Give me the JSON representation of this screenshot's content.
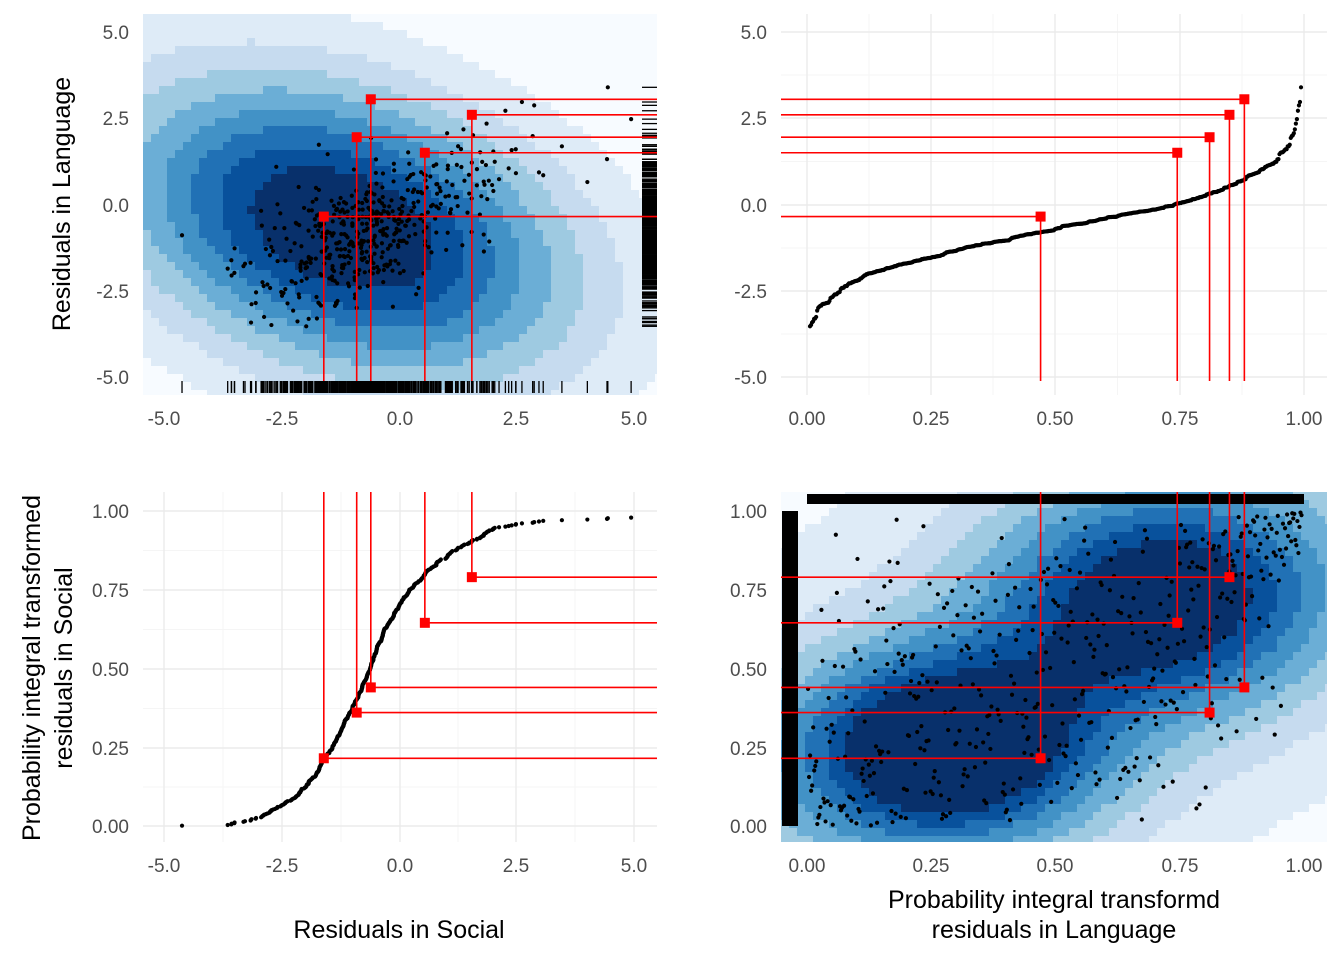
{
  "figure": {
    "colors": {
      "grid_major": "#ebebeb",
      "grid_minor": "#f5f5f5",
      "points": "#000000",
      "highlight": "#ff0000",
      "density_fill_low": "#f7fbff",
      "density_fill_high": "#08306b"
    },
    "axis_titles": {
      "y_top": "Residuals in Language",
      "y_bottom_line1": "Probability integral transformed",
      "y_bottom_line2": "residuals in Social",
      "x_left": "Residuals in Social",
      "x_right_line1": "Probability integral transformd",
      "x_right_line2": "residuals in Language"
    }
  },
  "chart_data": [
    {
      "id": "top-left",
      "type": "scatter",
      "overlay": "filled-2d-density",
      "rugs": [
        "bottom",
        "right"
      ],
      "xlabel": "",
      "ylabel": "Residuals in Language",
      "xlim": [
        -5.2,
        5.3
      ],
      "ylim": [
        -5.3,
        5.5
      ],
      "xticks": [
        "-5.0",
        "-2.5",
        "0.0",
        "2.5",
        "5.0"
      ],
      "yticks": [
        "-5.0",
        "-2.5",
        "0.0",
        "2.5",
        "5.0"
      ],
      "highlighted_points": [
        {
          "x": -1.6,
          "y": -0.35
        },
        {
          "x": -0.9,
          "y": 1.95
        },
        {
          "x": -0.6,
          "y": 3.05
        },
        {
          "x": 0.55,
          "y": 1.5
        },
        {
          "x": 1.55,
          "y": 2.6
        }
      ],
      "highlight_guides": "vertical to bottom, horizontal to right edge"
    },
    {
      "id": "top-right",
      "type": "scatter",
      "xlabel": "",
      "ylabel": "",
      "xlim": [
        -0.05,
        1.04
      ],
      "ylim": [
        -5.3,
        5.5
      ],
      "xticks": [
        "0.00",
        "0.25",
        "0.50",
        "0.75",
        "1.00"
      ],
      "yticks": [
        "-5.0",
        "-2.5",
        "0.0",
        "2.5",
        "5.0"
      ],
      "highlighted_points": [
        {
          "x": 0.47,
          "y": -0.35
        },
        {
          "x": 0.745,
          "y": 1.5
        },
        {
          "x": 0.81,
          "y": 1.95
        },
        {
          "x": 0.85,
          "y": 2.6
        },
        {
          "x": 0.88,
          "y": 3.05
        }
      ],
      "highlight_guides": "vertical to bottom, horizontal to left edge"
    },
    {
      "id": "bottom-left",
      "type": "scatter",
      "xlabel": "Residuals in Social",
      "ylabel": "Probability integral transformed residuals in Social",
      "xlim": [
        -5.2,
        5.3
      ],
      "ylim": [
        -0.04,
        1.05
      ],
      "xticks": [
        "-5.0",
        "-2.5",
        "0.0",
        "2.5",
        "5.0"
      ],
      "yticks": [
        "0.00",
        "0.25",
        "0.50",
        "0.75",
        "1.00"
      ],
      "highlighted_points": [
        {
          "x": -1.6,
          "y": 0.215
        },
        {
          "x": -0.9,
          "y": 0.36
        },
        {
          "x": -0.6,
          "y": 0.44
        },
        {
          "x": 0.55,
          "y": 0.645
        },
        {
          "x": 1.55,
          "y": 0.79
        }
      ],
      "highlight_guides": "vertical to top, horizontal to right edge"
    },
    {
      "id": "bottom-right",
      "type": "scatter",
      "overlay": "filled-2d-density",
      "rugs": [
        "top",
        "left"
      ],
      "xlabel": "Probability integral transformd residuals in Language",
      "ylabel": "",
      "xlim": [
        -0.05,
        1.04
      ],
      "ylim": [
        -0.04,
        1.05
      ],
      "xticks": [
        "0.00",
        "0.25",
        "0.50",
        "0.75",
        "1.00"
      ],
      "yticks": [
        "0.00",
        "0.25",
        "0.50",
        "0.75",
        "1.00"
      ],
      "highlighted_points": [
        {
          "x": 0.47,
          "y": 0.215
        },
        {
          "x": 0.81,
          "y": 0.36
        },
        {
          "x": 0.88,
          "y": 0.44
        },
        {
          "x": 0.745,
          "y": 0.645
        },
        {
          "x": 0.85,
          "y": 0.79
        }
      ],
      "highlight_guides": "vertical to top, horizontal to left edge"
    }
  ]
}
